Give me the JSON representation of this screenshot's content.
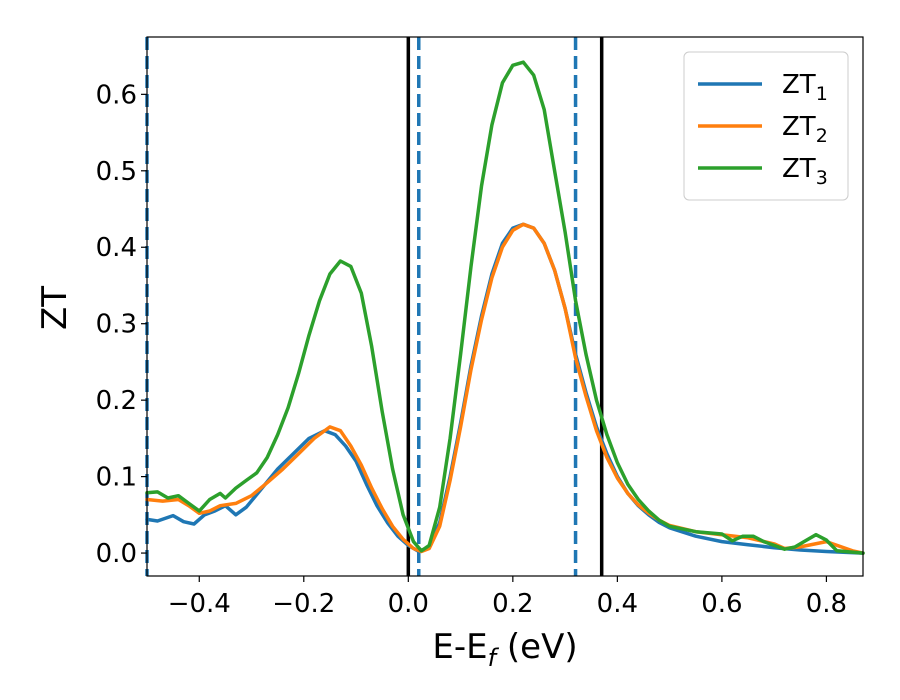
{
  "chart_data": {
    "type": "line",
    "title": "",
    "xlabel": "E-E",
    "xlabel_sub": "f",
    "xlabel_unit": " (eV)",
    "ylabel": "ZT",
    "xlim": [
      -0.5,
      0.87
    ],
    "ylim": [
      -0.03,
      0.675
    ],
    "grid": false,
    "legend_position": "top-right",
    "x_ticks": [
      {
        "value": -0.4,
        "label": "−0.4"
      },
      {
        "value": -0.2,
        "label": "−0.2"
      },
      {
        "value": 0.0,
        "label": "0.0"
      },
      {
        "value": 0.2,
        "label": "0.2"
      },
      {
        "value": 0.4,
        "label": "0.4"
      },
      {
        "value": 0.6,
        "label": "0.6"
      },
      {
        "value": 0.8,
        "label": "0.8"
      }
    ],
    "y_ticks": [
      {
        "value": 0.0,
        "label": "0.0"
      },
      {
        "value": 0.1,
        "label": "0.1"
      },
      {
        "value": 0.2,
        "label": "0.2"
      },
      {
        "value": 0.3,
        "label": "0.3"
      },
      {
        "value": 0.4,
        "label": "0.4"
      },
      {
        "value": 0.5,
        "label": "0.5"
      },
      {
        "value": 0.6,
        "label": "0.6"
      }
    ],
    "vertical_lines": [
      {
        "x": 0.0,
        "style": "solid",
        "color": "#000000"
      },
      {
        "x": 0.37,
        "style": "solid",
        "color": "#000000"
      },
      {
        "x": 0.02,
        "style": "dashed",
        "color": "#1f77b4"
      },
      {
        "x": 0.32,
        "style": "dashed",
        "color": "#1f77b4"
      },
      {
        "x": -0.5,
        "style": "dashed",
        "color": "#1f77b4"
      }
    ],
    "series": [
      {
        "name": "ZT",
        "name_sub": "1",
        "color": "#1f77b4",
        "points": [
          [
            -0.5,
            0.044
          ],
          [
            -0.48,
            0.042
          ],
          [
            -0.45,
            0.049
          ],
          [
            -0.43,
            0.041
          ],
          [
            -0.41,
            0.038
          ],
          [
            -0.39,
            0.05
          ],
          [
            -0.37,
            0.055
          ],
          [
            -0.35,
            0.062
          ],
          [
            -0.33,
            0.05
          ],
          [
            -0.31,
            0.06
          ],
          [
            -0.28,
            0.085
          ],
          [
            -0.25,
            0.11
          ],
          [
            -0.22,
            0.13
          ],
          [
            -0.19,
            0.15
          ],
          [
            -0.16,
            0.16
          ],
          [
            -0.14,
            0.155
          ],
          [
            -0.12,
            0.14
          ],
          [
            -0.1,
            0.12
          ],
          [
            -0.08,
            0.09
          ],
          [
            -0.06,
            0.062
          ],
          [
            -0.04,
            0.04
          ],
          [
            -0.02,
            0.022
          ],
          [
            0.0,
            0.01
          ],
          [
            0.02,
            0.002
          ],
          [
            0.04,
            0.008
          ],
          [
            0.06,
            0.04
          ],
          [
            0.08,
            0.1
          ],
          [
            0.1,
            0.17
          ],
          [
            0.12,
            0.245
          ],
          [
            0.14,
            0.31
          ],
          [
            0.16,
            0.365
          ],
          [
            0.18,
            0.405
          ],
          [
            0.2,
            0.425
          ],
          [
            0.22,
            0.43
          ],
          [
            0.24,
            0.425
          ],
          [
            0.26,
            0.405
          ],
          [
            0.28,
            0.37
          ],
          [
            0.3,
            0.32
          ],
          [
            0.32,
            0.26
          ],
          [
            0.34,
            0.21
          ],
          [
            0.36,
            0.165
          ],
          [
            0.38,
            0.13
          ],
          [
            0.4,
            0.1
          ],
          [
            0.42,
            0.078
          ],
          [
            0.44,
            0.062
          ],
          [
            0.46,
            0.05
          ],
          [
            0.48,
            0.04
          ],
          [
            0.5,
            0.033
          ],
          [
            0.55,
            0.022
          ],
          [
            0.6,
            0.015
          ],
          [
            0.65,
            0.011
          ],
          [
            0.7,
            0.007
          ],
          [
            0.75,
            0.004
          ],
          [
            0.8,
            0.002
          ],
          [
            0.87,
            0.0
          ]
        ]
      },
      {
        "name": "ZT",
        "name_sub": "2",
        "color": "#ff7f0e",
        "points": [
          [
            -0.5,
            0.07
          ],
          [
            -0.47,
            0.068
          ],
          [
            -0.44,
            0.07
          ],
          [
            -0.42,
            0.062
          ],
          [
            -0.4,
            0.052
          ],
          [
            -0.38,
            0.055
          ],
          [
            -0.36,
            0.062
          ],
          [
            -0.33,
            0.065
          ],
          [
            -0.3,
            0.075
          ],
          [
            -0.27,
            0.092
          ],
          [
            -0.24,
            0.11
          ],
          [
            -0.21,
            0.13
          ],
          [
            -0.18,
            0.15
          ],
          [
            -0.15,
            0.165
          ],
          [
            -0.13,
            0.16
          ],
          [
            -0.11,
            0.14
          ],
          [
            -0.09,
            0.115
          ],
          [
            -0.07,
            0.085
          ],
          [
            -0.05,
            0.058
          ],
          [
            -0.03,
            0.035
          ],
          [
            -0.01,
            0.018
          ],
          [
            0.01,
            0.006
          ],
          [
            0.025,
            0.002
          ],
          [
            0.04,
            0.006
          ],
          [
            0.06,
            0.035
          ],
          [
            0.08,
            0.095
          ],
          [
            0.1,
            0.165
          ],
          [
            0.12,
            0.24
          ],
          [
            0.14,
            0.305
          ],
          [
            0.16,
            0.36
          ],
          [
            0.18,
            0.4
          ],
          [
            0.2,
            0.422
          ],
          [
            0.22,
            0.43
          ],
          [
            0.24,
            0.425
          ],
          [
            0.26,
            0.405
          ],
          [
            0.28,
            0.37
          ],
          [
            0.3,
            0.32
          ],
          [
            0.32,
            0.255
          ],
          [
            0.34,
            0.205
          ],
          [
            0.36,
            0.16
          ],
          [
            0.38,
            0.125
          ],
          [
            0.4,
            0.098
          ],
          [
            0.42,
            0.078
          ],
          [
            0.44,
            0.063
          ],
          [
            0.46,
            0.052
          ],
          [
            0.48,
            0.043
          ],
          [
            0.5,
            0.036
          ],
          [
            0.55,
            0.028
          ],
          [
            0.6,
            0.024
          ],
          [
            0.65,
            0.02
          ],
          [
            0.7,
            0.012
          ],
          [
            0.72,
            0.006
          ],
          [
            0.75,
            0.008
          ],
          [
            0.8,
            0.015
          ],
          [
            0.85,
            0.003
          ],
          [
            0.87,
            0.0
          ]
        ]
      },
      {
        "name": "ZT",
        "name_sub": "3",
        "color": "#2ca02c",
        "points": [
          [
            -0.5,
            0.079
          ],
          [
            -0.48,
            0.08
          ],
          [
            -0.46,
            0.072
          ],
          [
            -0.44,
            0.075
          ],
          [
            -0.42,
            0.065
          ],
          [
            -0.4,
            0.055
          ],
          [
            -0.38,
            0.07
          ],
          [
            -0.36,
            0.078
          ],
          [
            -0.35,
            0.072
          ],
          [
            -0.33,
            0.085
          ],
          [
            -0.31,
            0.095
          ],
          [
            -0.29,
            0.105
          ],
          [
            -0.27,
            0.125
          ],
          [
            -0.25,
            0.155
          ],
          [
            -0.23,
            0.19
          ],
          [
            -0.21,
            0.235
          ],
          [
            -0.19,
            0.285
          ],
          [
            -0.17,
            0.33
          ],
          [
            -0.15,
            0.365
          ],
          [
            -0.13,
            0.382
          ],
          [
            -0.11,
            0.375
          ],
          [
            -0.09,
            0.34
          ],
          [
            -0.07,
            0.27
          ],
          [
            -0.05,
            0.185
          ],
          [
            -0.03,
            0.11
          ],
          [
            -0.01,
            0.05
          ],
          [
            0.01,
            0.015
          ],
          [
            0.025,
            0.003
          ],
          [
            0.04,
            0.01
          ],
          [
            0.06,
            0.06
          ],
          [
            0.08,
            0.15
          ],
          [
            0.1,
            0.26
          ],
          [
            0.12,
            0.375
          ],
          [
            0.14,
            0.48
          ],
          [
            0.16,
            0.56
          ],
          [
            0.18,
            0.615
          ],
          [
            0.2,
            0.638
          ],
          [
            0.22,
            0.642
          ],
          [
            0.24,
            0.625
          ],
          [
            0.26,
            0.58
          ],
          [
            0.28,
            0.5
          ],
          [
            0.3,
            0.42
          ],
          [
            0.32,
            0.33
          ],
          [
            0.34,
            0.26
          ],
          [
            0.36,
            0.2
          ],
          [
            0.38,
            0.155
          ],
          [
            0.4,
            0.118
          ],
          [
            0.42,
            0.09
          ],
          [
            0.44,
            0.07
          ],
          [
            0.46,
            0.055
          ],
          [
            0.48,
            0.043
          ],
          [
            0.5,
            0.035
          ],
          [
            0.55,
            0.028
          ],
          [
            0.6,
            0.025
          ],
          [
            0.62,
            0.016
          ],
          [
            0.64,
            0.022
          ],
          [
            0.66,
            0.022
          ],
          [
            0.68,
            0.015
          ],
          [
            0.7,
            0.01
          ],
          [
            0.72,
            0.005
          ],
          [
            0.74,
            0.008
          ],
          [
            0.76,
            0.016
          ],
          [
            0.78,
            0.024
          ],
          [
            0.8,
            0.017
          ],
          [
            0.82,
            0.003
          ],
          [
            0.87,
            0.0
          ]
        ]
      }
    ]
  }
}
